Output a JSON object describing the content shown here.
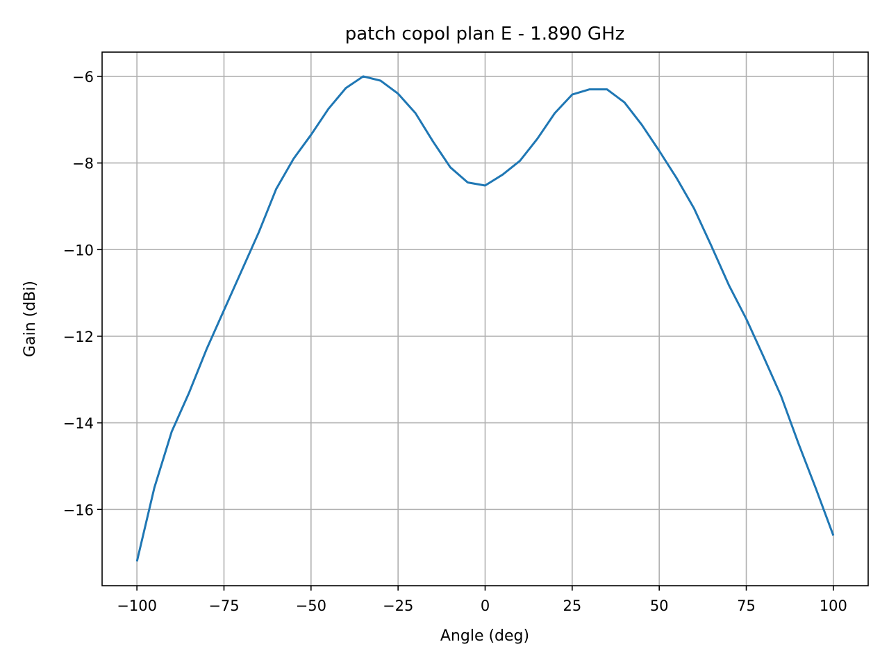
{
  "chart_data": {
    "type": "line",
    "title": "patch copol plan E - 1.890 GHz",
    "xlabel": "Angle (deg)",
    "ylabel": "Gain (dBi)",
    "x": [
      -100,
      -95,
      -90,
      -85,
      -80,
      -75,
      -70,
      -65,
      -60,
      -55,
      -50,
      -45,
      -40,
      -35,
      -30,
      -25,
      -20,
      -15,
      -10,
      -5,
      0,
      5,
      10,
      15,
      20,
      25,
      30,
      35,
      40,
      45,
      50,
      55,
      60,
      65,
      70,
      75,
      80,
      85,
      90,
      95,
      100
    ],
    "series": [
      {
        "name": "copol",
        "color": "#1f77b4",
        "values": [
          -17.2,
          -15.5,
          -14.2,
          -13.3,
          -12.3,
          -11.4,
          -10.5,
          -9.6,
          -8.6,
          -7.9,
          -7.35,
          -6.75,
          -6.27,
          -6.0,
          -6.1,
          -6.4,
          -6.85,
          -7.5,
          -8.1,
          -8.45,
          -8.52,
          -8.27,
          -7.95,
          -7.44,
          -6.85,
          -6.42,
          -6.3,
          -6.3,
          -6.6,
          -7.12,
          -7.72,
          -8.35,
          -9.05,
          -9.92,
          -10.82,
          -11.6,
          -12.48,
          -13.38,
          -14.48,
          -15.52,
          -16.6
        ]
      }
    ],
    "xlim": [
      -110,
      110
    ],
    "xticks": [
      {
        "value": -100,
        "label": "−100"
      },
      {
        "value": -75,
        "label": "−75"
      },
      {
        "value": -50,
        "label": "−50"
      },
      {
        "value": -25,
        "label": "−25"
      },
      0,
      25,
      50,
      75,
      100
    ],
    "ylim": [
      -17.76,
      -5.44
    ],
    "yticks": [
      {
        "value": -16,
        "label": "−16"
      },
      {
        "value": -14,
        "label": "−14"
      },
      {
        "value": -12,
        "label": "−12"
      },
      {
        "value": -10,
        "label": "−10"
      },
      {
        "value": -8,
        "label": "−8"
      },
      {
        "value": -6,
        "label": "−6"
      }
    ],
    "grid": true
  }
}
